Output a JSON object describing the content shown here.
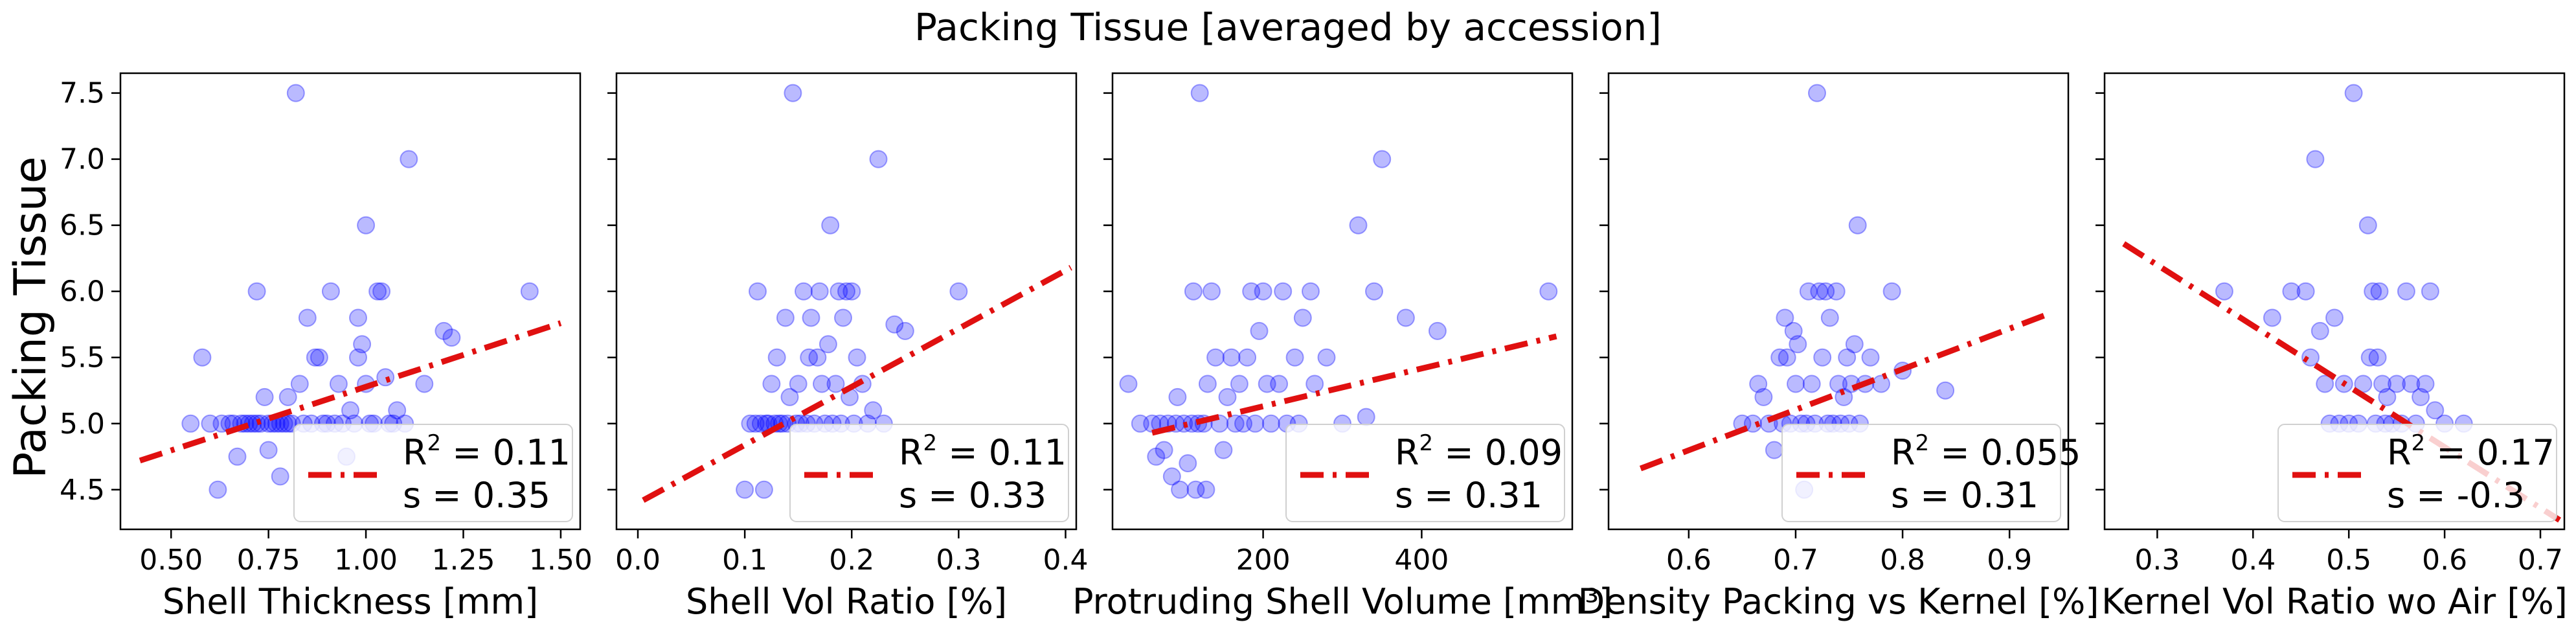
{
  "title": "Packing Tissue [averaged by accession]",
  "ylabel": "Packing Tissue",
  "colors": {
    "points": "#0000ff",
    "fit": "#e01010"
  },
  "chart_data": [
    {
      "type": "scatter",
      "xlabel": "Shell Thickness [mm]",
      "ylabel": "Packing Tissue",
      "xlim": [
        0.37,
        1.55
      ],
      "ylim": [
        4.2,
        7.65
      ],
      "xticks": [
        0.5,
        0.75,
        1.0,
        1.25,
        1.5
      ],
      "xtick_labels": [
        "0.50",
        "0.75",
        "1.00",
        "1.25",
        "1.50"
      ],
      "yticks": [
        4.5,
        5.0,
        5.5,
        6.0,
        6.5,
        7.0,
        7.5
      ],
      "ytick_labels": [
        "4.5",
        "5.0",
        "5.5",
        "6.0",
        "6.5",
        "7.0",
        "7.5"
      ],
      "fit_line": [
        [
          0.42,
          4.72
        ],
        [
          1.5,
          5.76
        ]
      ],
      "legend": {
        "r2_label": "R",
        "r2_sup": "2",
        "r2_value": " = 0.11",
        "s_label": "s   = 0.35",
        "position": "lower-right"
      },
      "points": [
        [
          0.55,
          5.0
        ],
        [
          0.58,
          5.5
        ],
        [
          0.6,
          5.0
        ],
        [
          0.62,
          4.5
        ],
        [
          0.63,
          5.0
        ],
        [
          0.65,
          5.0
        ],
        [
          0.66,
          5.0
        ],
        [
          0.67,
          4.75
        ],
        [
          0.68,
          5.0
        ],
        [
          0.69,
          5.0
        ],
        [
          0.7,
          5.0
        ],
        [
          0.71,
          5.0
        ],
        [
          0.72,
          5.0
        ],
        [
          0.72,
          6.0
        ],
        [
          0.73,
          5.0
        ],
        [
          0.74,
          5.2
        ],
        [
          0.75,
          5.0
        ],
        [
          0.75,
          4.8
        ],
        [
          0.76,
          5.0
        ],
        [
          0.77,
          5.0
        ],
        [
          0.78,
          5.0
        ],
        [
          0.78,
          4.6
        ],
        [
          0.79,
          5.0
        ],
        [
          0.8,
          5.0
        ],
        [
          0.8,
          5.2
        ],
        [
          0.81,
          5.0
        ],
        [
          0.82,
          7.5
        ],
        [
          0.83,
          5.3
        ],
        [
          0.84,
          5.0
        ],
        [
          0.85,
          5.8
        ],
        [
          0.86,
          5.0
        ],
        [
          0.87,
          5.5
        ],
        [
          0.88,
          5.5
        ],
        [
          0.89,
          5.0
        ],
        [
          0.9,
          5.0
        ],
        [
          0.91,
          6.0
        ],
        [
          0.92,
          5.0
        ],
        [
          0.93,
          5.3
        ],
        [
          0.94,
          5.0
        ],
        [
          0.95,
          4.75
        ],
        [
          0.96,
          5.1
        ],
        [
          0.97,
          5.0
        ],
        [
          0.98,
          5.8
        ],
        [
          0.98,
          5.5
        ],
        [
          0.99,
          5.6
        ],
        [
          1.0,
          6.5
        ],
        [
          1.0,
          5.3
        ],
        [
          1.01,
          5.0
        ],
        [
          1.02,
          5.0
        ],
        [
          1.03,
          6.0
        ],
        [
          1.04,
          6.0
        ],
        [
          1.05,
          5.35
        ],
        [
          1.06,
          5.0
        ],
        [
          1.07,
          5.0
        ],
        [
          1.08,
          5.1
        ],
        [
          1.1,
          5.0
        ],
        [
          1.11,
          7.0
        ],
        [
          1.15,
          5.3
        ],
        [
          1.2,
          5.7
        ],
        [
          1.22,
          5.65
        ],
        [
          1.42,
          6.0
        ]
      ]
    },
    {
      "type": "scatter",
      "xlabel": "Shell Vol Ratio [%]",
      "ylabel": "",
      "xlim": [
        -0.02,
        0.41
      ],
      "ylim": [
        4.2,
        7.65
      ],
      "xticks": [
        0.0,
        0.1,
        0.2,
        0.3,
        0.4
      ],
      "xtick_labels": [
        "0.0",
        "0.1",
        "0.2",
        "0.3",
        "0.4"
      ],
      "yticks": [
        4.5,
        5.0,
        5.5,
        6.0,
        6.5,
        7.0,
        7.5
      ],
      "ytick_labels": [
        "",
        "",
        "",
        "",
        "",
        "",
        ""
      ],
      "fit_line": [
        [
          0.005,
          4.42
        ],
        [
          0.405,
          6.18
        ]
      ],
      "legend": {
        "r2_label": "R",
        "r2_sup": "2",
        "r2_value": " = 0.11",
        "s_label": "s   = 0.33",
        "position": "lower-right"
      },
      "points": [
        [
          0.1,
          4.5
        ],
        [
          0.105,
          5.0
        ],
        [
          0.11,
          5.0
        ],
        [
          0.112,
          6.0
        ],
        [
          0.115,
          5.0
        ],
        [
          0.118,
          4.5
        ],
        [
          0.12,
          5.0
        ],
        [
          0.122,
          5.0
        ],
        [
          0.125,
          5.3
        ],
        [
          0.128,
          5.0
        ],
        [
          0.13,
          5.5
        ],
        [
          0.132,
          5.0
        ],
        [
          0.135,
          5.0
        ],
        [
          0.138,
          5.8
        ],
        [
          0.14,
          5.0
        ],
        [
          0.142,
          5.2
        ],
        [
          0.145,
          7.5
        ],
        [
          0.148,
          5.0
        ],
        [
          0.15,
          5.3
        ],
        [
          0.152,
          5.0
        ],
        [
          0.155,
          6.0
        ],
        [
          0.158,
          5.0
        ],
        [
          0.16,
          5.5
        ],
        [
          0.162,
          5.8
        ],
        [
          0.165,
          5.0
        ],
        [
          0.168,
          5.5
        ],
        [
          0.17,
          6.0
        ],
        [
          0.172,
          5.3
        ],
        [
          0.175,
          5.0
        ],
        [
          0.178,
          5.6
        ],
        [
          0.18,
          6.5
        ],
        [
          0.182,
          5.0
        ],
        [
          0.185,
          5.3
        ],
        [
          0.188,
          6.0
        ],
        [
          0.19,
          5.0
        ],
        [
          0.192,
          5.8
        ],
        [
          0.195,
          6.0
        ],
        [
          0.198,
          5.2
        ],
        [
          0.2,
          6.0
        ],
        [
          0.202,
          5.0
        ],
        [
          0.205,
          5.5
        ],
        [
          0.21,
          5.3
        ],
        [
          0.215,
          5.0
        ],
        [
          0.22,
          5.1
        ],
        [
          0.225,
          7.0
        ],
        [
          0.23,
          5.0
        ],
        [
          0.24,
          5.75
        ],
        [
          0.25,
          5.7
        ],
        [
          0.3,
          6.0
        ]
      ]
    },
    {
      "type": "scatter",
      "xlabel": "Protruding Shell Volume [mm³]",
      "ylabel": "",
      "xlim": [
        10,
        590
      ],
      "ylim": [
        4.2,
        7.65
      ],
      "xticks": [
        200,
        400
      ],
      "xtick_labels": [
        "200",
        "400"
      ],
      "yticks": [
        4.5,
        5.0,
        5.5,
        6.0,
        6.5,
        7.0,
        7.5
      ],
      "ytick_labels": [
        "",
        "",
        "",
        "",
        "",
        "",
        ""
      ],
      "fit_line": [
        [
          60,
          4.93
        ],
        [
          570,
          5.66
        ]
      ],
      "legend": {
        "r2_label": "R",
        "r2_sup": "2",
        "r2_value": " = 0.09",
        "s_label": "s   = 0.31",
        "position": "lower-right"
      },
      "points": [
        [
          30,
          5.3
        ],
        [
          45,
          5.0
        ],
        [
          60,
          5.0
        ],
        [
          65,
          4.75
        ],
        [
          70,
          5.0
        ],
        [
          75,
          4.8
        ],
        [
          80,
          5.0
        ],
        [
          85,
          4.6
        ],
        [
          90,
          5.0
        ],
        [
          92,
          5.2
        ],
        [
          95,
          4.5
        ],
        [
          100,
          5.0
        ],
        [
          105,
          4.7
        ],
        [
          110,
          5.0
        ],
        [
          112,
          6.0
        ],
        [
          115,
          4.5
        ],
        [
          118,
          5.0
        ],
        [
          120,
          7.5
        ],
        [
          125,
          5.0
        ],
        [
          128,
          4.5
        ],
        [
          130,
          5.3
        ],
        [
          135,
          6.0
        ],
        [
          140,
          5.5
        ],
        [
          145,
          5.0
        ],
        [
          150,
          4.8
        ],
        [
          155,
          5.2
        ],
        [
          160,
          5.5
        ],
        [
          165,
          5.0
        ],
        [
          170,
          5.3
        ],
        [
          175,
          5.0
        ],
        [
          180,
          5.5
        ],
        [
          185,
          6.0
        ],
        [
          190,
          5.0
        ],
        [
          195,
          5.7
        ],
        [
          200,
          6.0
        ],
        [
          205,
          5.3
        ],
        [
          210,
          5.0
        ],
        [
          220,
          5.3
        ],
        [
          225,
          6.0
        ],
        [
          230,
          5.0
        ],
        [
          240,
          5.5
        ],
        [
          245,
          5.0
        ],
        [
          250,
          5.8
        ],
        [
          260,
          6.0
        ],
        [
          265,
          5.3
        ],
        [
          280,
          5.5
        ],
        [
          300,
          5.0
        ],
        [
          320,
          6.5
        ],
        [
          330,
          5.05
        ],
        [
          340,
          6.0
        ],
        [
          350,
          7.0
        ],
        [
          380,
          5.8
        ],
        [
          420,
          5.7
        ],
        [
          560,
          6.0
        ]
      ]
    },
    {
      "type": "scatter",
      "xlabel": "Density Packing vs Kernel [%]",
      "ylabel": "",
      "xlim": [
        0.525,
        0.955
      ],
      "ylim": [
        4.2,
        7.65
      ],
      "xticks": [
        0.6,
        0.7,
        0.8,
        0.9
      ],
      "xtick_labels": [
        "0.6",
        "0.7",
        "0.8",
        "0.9"
      ],
      "yticks": [
        4.5,
        5.0,
        5.5,
        6.0,
        6.5,
        7.0,
        7.5
      ],
      "ytick_labels": [
        "",
        "",
        "",
        "",
        "",
        "",
        ""
      ],
      "fit_line": [
        [
          0.555,
          4.66
        ],
        [
          0.94,
          5.84
        ]
      ],
      "legend": {
        "r2_label": "R",
        "r2_sup": "2",
        "r2_value": " = 0.055",
        "s_label": "s   = 0.31",
        "position": "lower-right"
      },
      "points": [
        [
          0.65,
          5.0
        ],
        [
          0.66,
          5.0
        ],
        [
          0.665,
          5.3
        ],
        [
          0.67,
          5.2
        ],
        [
          0.675,
          5.0
        ],
        [
          0.68,
          4.8
        ],
        [
          0.685,
          5.5
        ],
        [
          0.688,
          5.0
        ],
        [
          0.69,
          5.8
        ],
        [
          0.692,
          5.5
        ],
        [
          0.695,
          5.0
        ],
        [
          0.698,
          5.7
        ],
        [
          0.7,
          5.3
        ],
        [
          0.702,
          5.6
        ],
        [
          0.705,
          5.0
        ],
        [
          0.708,
          4.5
        ],
        [
          0.71,
          5.0
        ],
        [
          0.712,
          6.0
        ],
        [
          0.715,
          5.3
        ],
        [
          0.718,
          5.0
        ],
        [
          0.72,
          7.5
        ],
        [
          0.722,
          6.0
        ],
        [
          0.725,
          5.5
        ],
        [
          0.728,
          6.0
        ],
        [
          0.73,
          5.0
        ],
        [
          0.732,
          5.8
        ],
        [
          0.735,
          5.0
        ],
        [
          0.738,
          6.0
        ],
        [
          0.74,
          5.3
        ],
        [
          0.742,
          5.0
        ],
        [
          0.745,
          5.2
        ],
        [
          0.748,
          5.5
        ],
        [
          0.75,
          5.0
        ],
        [
          0.752,
          5.3
        ],
        [
          0.755,
          5.6
        ],
        [
          0.758,
          6.5
        ],
        [
          0.76,
          5.0
        ],
        [
          0.765,
          5.3
        ],
        [
          0.77,
          5.5
        ],
        [
          0.78,
          5.3
        ],
        [
          0.79,
          6.0
        ],
        [
          0.8,
          5.4
        ],
        [
          0.84,
          5.25
        ]
      ]
    },
    {
      "type": "scatter",
      "xlabel": "Kernel Vol Ratio wo Air [%]",
      "ylabel": "",
      "xlim": [
        0.245,
        0.725
      ],
      "ylim": [
        4.2,
        7.65
      ],
      "xticks": [
        0.3,
        0.4,
        0.5,
        0.6,
        0.7
      ],
      "xtick_labels": [
        "0.3",
        "0.4",
        "0.5",
        "0.6",
        "0.7"
      ],
      "yticks": [
        4.5,
        5.0,
        5.5,
        6.0,
        6.5,
        7.0,
        7.5
      ],
      "ytick_labels": [
        "",
        "",
        "",
        "",
        "",
        "",
        ""
      ],
      "fit_line": [
        [
          0.265,
          6.36
        ],
        [
          0.72,
          4.27
        ]
      ],
      "legend": {
        "r2_label": "R",
        "r2_sup": "2",
        "r2_value": " = 0.17",
        "s_label": "s   = -0.3",
        "position": "lower-right"
      },
      "points": [
        [
          0.37,
          6.0
        ],
        [
          0.42,
          5.8
        ],
        [
          0.44,
          6.0
        ],
        [
          0.455,
          6.0
        ],
        [
          0.46,
          5.5
        ],
        [
          0.465,
          7.0
        ],
        [
          0.47,
          5.7
        ],
        [
          0.475,
          5.3
        ],
        [
          0.48,
          5.0
        ],
        [
          0.485,
          5.8
        ],
        [
          0.49,
          5.0
        ],
        [
          0.495,
          5.3
        ],
        [
          0.5,
          5.0
        ],
        [
          0.505,
          7.5
        ],
        [
          0.51,
          5.0
        ],
        [
          0.515,
          5.3
        ],
        [
          0.52,
          6.5
        ],
        [
          0.522,
          5.5
        ],
        [
          0.525,
          6.0
        ],
        [
          0.528,
          5.0
        ],
        [
          0.53,
          5.5
        ],
        [
          0.532,
          6.0
        ],
        [
          0.535,
          5.3
        ],
        [
          0.538,
          5.0
        ],
        [
          0.54,
          5.2
        ],
        [
          0.545,
          5.0
        ],
        [
          0.55,
          5.3
        ],
        [
          0.555,
          5.0
        ],
        [
          0.56,
          6.0
        ],
        [
          0.565,
          5.3
        ],
        [
          0.57,
          5.0
        ],
        [
          0.575,
          5.2
        ],
        [
          0.58,
          5.3
        ],
        [
          0.585,
          6.0
        ],
        [
          0.59,
          5.1
        ],
        [
          0.6,
          5.0
        ],
        [
          0.62,
          5.0
        ]
      ]
    }
  ]
}
